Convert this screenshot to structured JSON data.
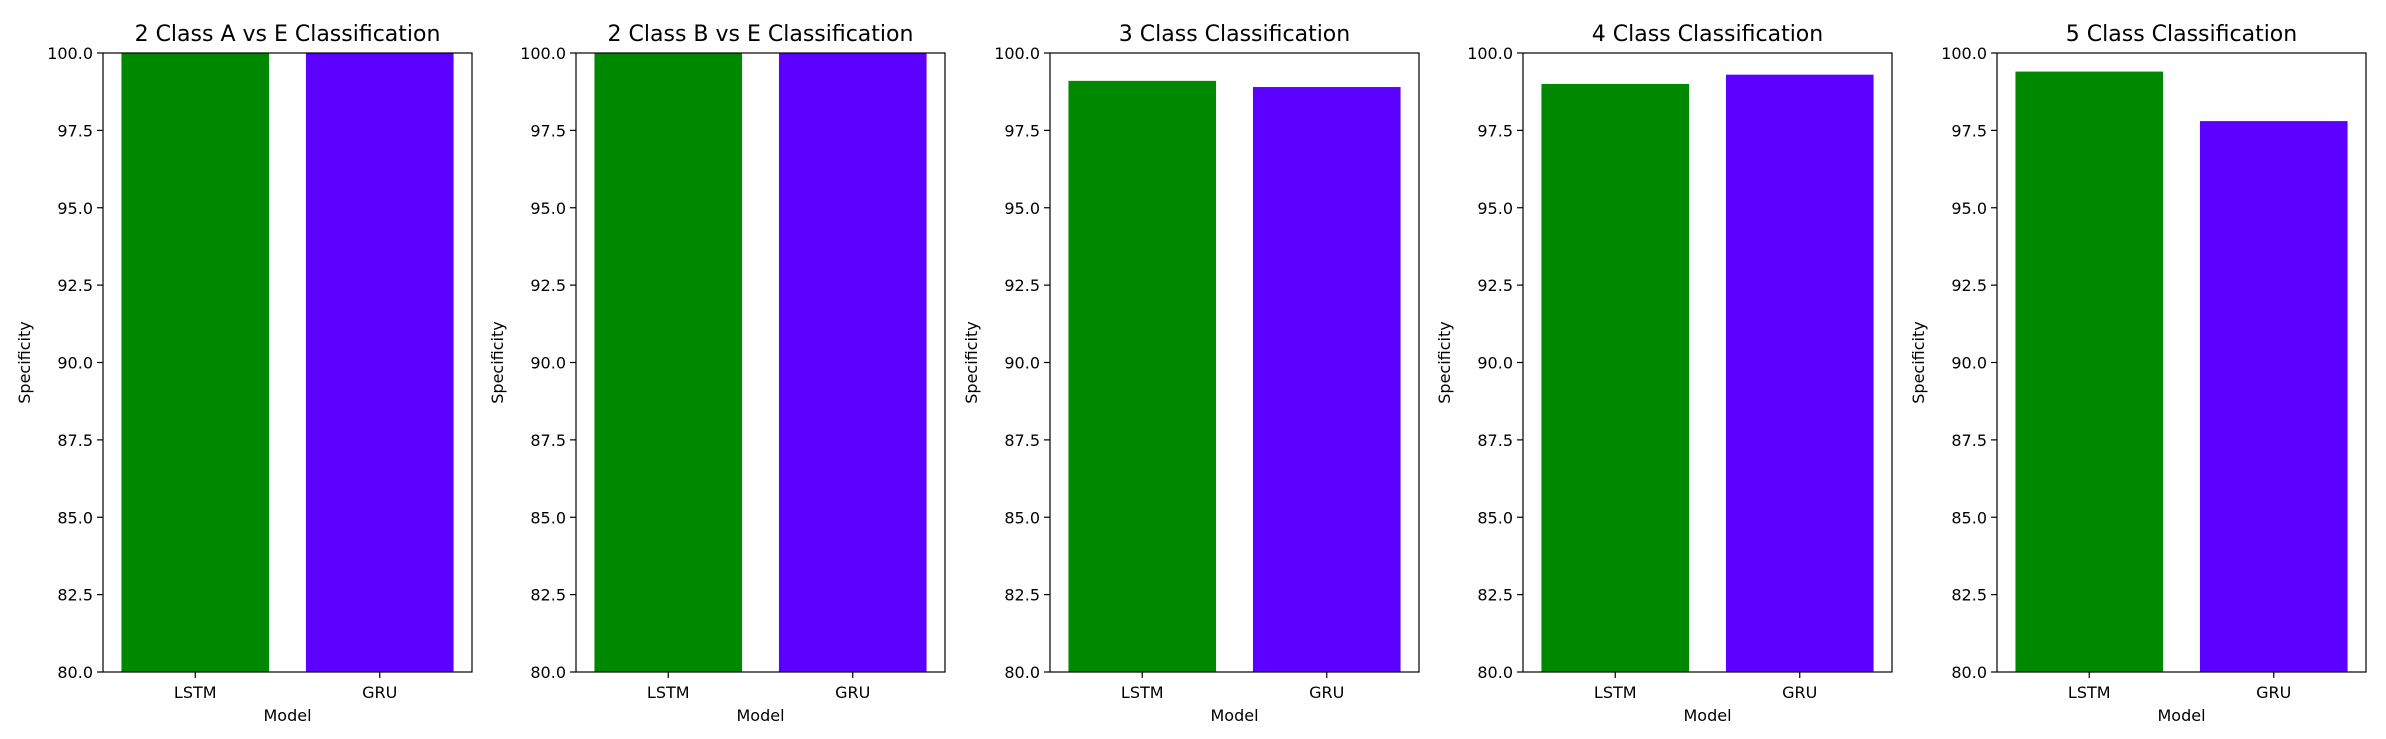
{
  "colors": {
    "LSTM": "#008800",
    "GRU": "#5c00ff"
  },
  "chart_data": [
    {
      "type": "bar",
      "title": "2 Class A vs E Classification",
      "xlabel": "Model",
      "ylabel": "Specificity",
      "categories": [
        "LSTM",
        "GRU"
      ],
      "values": [
        100.0,
        100.0
      ],
      "ylim": [
        80.0,
        100.0
      ],
      "yticks": [
        "80.0",
        "82.5",
        "85.0",
        "87.5",
        "90.0",
        "92.5",
        "95.0",
        "97.5",
        "100.0"
      ],
      "grid": false,
      "legend": "none"
    },
    {
      "type": "bar",
      "title": "2 Class B vs E Classification",
      "xlabel": "Model",
      "ylabel": "Specificity",
      "categories": [
        "LSTM",
        "GRU"
      ],
      "values": [
        100.0,
        100.0
      ],
      "ylim": [
        80.0,
        100.0
      ],
      "yticks": [
        "80.0",
        "82.5",
        "85.0",
        "87.5",
        "90.0",
        "92.5",
        "95.0",
        "97.5",
        "100.0"
      ],
      "grid": false,
      "legend": "none"
    },
    {
      "type": "bar",
      "title": "3 Class Classification",
      "xlabel": "Model",
      "ylabel": "Specificity",
      "categories": [
        "LSTM",
        "GRU"
      ],
      "values": [
        99.1,
        98.9
      ],
      "ylim": [
        80.0,
        100.0
      ],
      "yticks": [
        "80.0",
        "82.5",
        "85.0",
        "87.5",
        "90.0",
        "92.5",
        "95.0",
        "97.5",
        "100.0"
      ],
      "grid": false,
      "legend": "none"
    },
    {
      "type": "bar",
      "title": "4 Class Classification",
      "xlabel": "Model",
      "ylabel": "Specificity",
      "categories": [
        "LSTM",
        "GRU"
      ],
      "values": [
        99.0,
        99.3
      ],
      "ylim": [
        80.0,
        100.0
      ],
      "yticks": [
        "80.0",
        "82.5",
        "85.0",
        "87.5",
        "90.0",
        "92.5",
        "95.0",
        "97.5",
        "100.0"
      ],
      "grid": false,
      "legend": "none"
    },
    {
      "type": "bar",
      "title": "5 Class Classification",
      "xlabel": "Model",
      "ylabel": "Specificity",
      "categories": [
        "LSTM",
        "GRU"
      ],
      "values": [
        99.4,
        97.8
      ],
      "ylim": [
        80.0,
        100.0
      ],
      "yticks": [
        "80.0",
        "82.5",
        "85.0",
        "87.5",
        "90.0",
        "92.5",
        "95.0",
        "97.5",
        "100.0"
      ],
      "grid": false,
      "legend": "none"
    }
  ]
}
